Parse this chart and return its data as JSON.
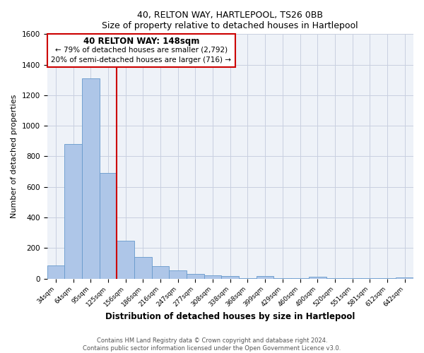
{
  "title": "40, RELTON WAY, HARTLEPOOL, TS26 0BB",
  "subtitle": "Size of property relative to detached houses in Hartlepool",
  "xlabel": "Distribution of detached houses by size in Hartlepool",
  "ylabel": "Number of detached properties",
  "bin_labels": [
    "34sqm",
    "64sqm",
    "95sqm",
    "125sqm",
    "156sqm",
    "186sqm",
    "216sqm",
    "247sqm",
    "277sqm",
    "308sqm",
    "338sqm",
    "368sqm",
    "399sqm",
    "429sqm",
    "460sqm",
    "490sqm",
    "520sqm",
    "551sqm",
    "581sqm",
    "612sqm",
    "642sqm"
  ],
  "bar_values": [
    85,
    880,
    1310,
    690,
    250,
    140,
    80,
    55,
    30,
    22,
    15,
    5,
    18,
    3,
    2,
    12,
    1,
    1,
    1,
    1,
    8
  ],
  "bar_color": "#aec6e8",
  "bar_edge_color": "#6699cc",
  "property_line_x": 3.5,
  "property_line_label": "40 RELTON WAY: 148sqm",
  "annotation_line1": "← 79% of detached houses are smaller (2,792)",
  "annotation_line2": "20% of semi-detached houses are larger (716) →",
  "box_color": "#cc0000",
  "ylim": [
    0,
    1600
  ],
  "yticks": [
    0,
    200,
    400,
    600,
    800,
    1000,
    1200,
    1400,
    1600
  ],
  "footer_line1": "Contains HM Land Registry data © Crown copyright and database right 2024.",
  "footer_line2": "Contains public sector information licensed under the Open Government Licence v3.0.",
  "bg_color": "#eef2f8",
  "grid_color": "#c8cfe0"
}
